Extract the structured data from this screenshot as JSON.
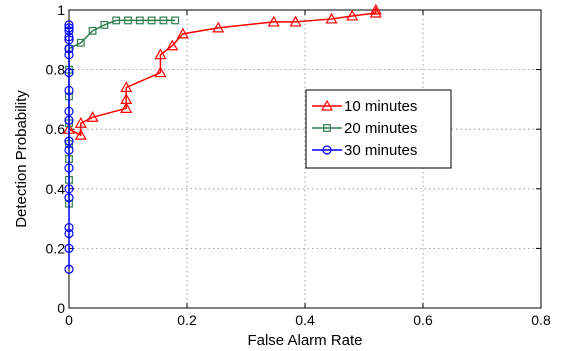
{
  "chart_data": {
    "type": "line",
    "title": "",
    "xlabel": "False Alarm Rate",
    "ylabel": "Detection Probability",
    "xlim": [
      0,
      0.8
    ],
    "ylim": [
      0,
      1
    ],
    "xticks": [
      0,
      0.2,
      0.4,
      0.6,
      0.8
    ],
    "yticks": [
      0,
      0.2,
      0.4,
      0.6,
      0.8,
      1
    ],
    "xtick_labels": [
      "0",
      "0.2",
      "0.4",
      "0.6",
      "0.8"
    ],
    "ytick_labels": [
      "0",
      "0.2",
      "0.4",
      "0.6",
      "0.8",
      "1"
    ],
    "grid": true,
    "legend_position": "center-right",
    "series": [
      {
        "name": "10 minutes",
        "color": "#ff0000",
        "marker": "triangle",
        "x": [
          0,
          0.02,
          0.02,
          0.04,
          0.097,
          0.097,
          0.097,
          0.155,
          0.155,
          0.175,
          0.193,
          0.253,
          0.347,
          0.384,
          0.445,
          0.48,
          0.52,
          0.52
        ],
        "y": [
          0.6,
          0.58,
          0.62,
          0.64,
          0.67,
          0.7,
          0.74,
          0.79,
          0.85,
          0.88,
          0.92,
          0.94,
          0.96,
          0.96,
          0.97,
          0.98,
          0.99,
          1.0
        ]
      },
      {
        "name": "20 minutes",
        "color": "#2e7d4f",
        "marker": "square",
        "x": [
          0,
          0,
          0,
          0,
          0,
          0,
          0,
          0,
          0.02,
          0.04,
          0.06,
          0.08,
          0.1,
          0.12,
          0.14,
          0.16,
          0.18
        ],
        "y": [
          0.35,
          0.43,
          0.5,
          0.55,
          0.62,
          0.71,
          0.8,
          0.87,
          0.89,
          0.93,
          0.95,
          0.965,
          0.965,
          0.965,
          0.965,
          0.965,
          0.965
        ]
      },
      {
        "name": "30 minutes",
        "color": "#0000ff",
        "marker": "circle",
        "x": [
          0,
          0,
          0,
          0,
          0,
          0,
          0,
          0,
          0,
          0,
          0,
          0,
          0,
          0,
          0,
          0,
          0,
          0,
          0,
          0
        ],
        "y": [
          0.13,
          0.2,
          0.25,
          0.27,
          0.37,
          0.4,
          0.47,
          0.53,
          0.56,
          0.63,
          0.66,
          0.73,
          0.79,
          0.85,
          0.87,
          0.9,
          0.91,
          0.93,
          0.94,
          0.95
        ]
      }
    ]
  }
}
